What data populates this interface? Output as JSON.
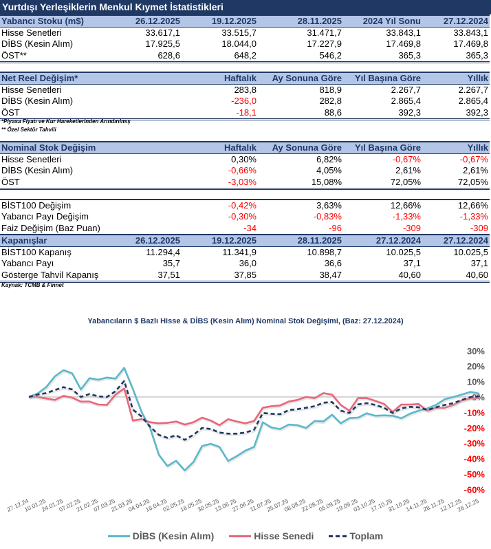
{
  "title": "Yurtdışı Yerleşiklerin Menkul Kıymet İstatistikleri",
  "tables": [
    {
      "header": [
        "Yabancı Stoku (m$)",
        "26.12.2025",
        "19.12.2025",
        "28.11.2025",
        "2024 Yıl Sonu",
        "27.12.2024"
      ],
      "rows": [
        [
          "Hisse Senetleri",
          "33.617,1",
          "33.515,7",
          "31.471,7",
          "33.843,1",
          "33.843,1"
        ],
        [
          "DİBS (Kesin Alım)",
          "17.925,5",
          "18.044,0",
          "17.227,9",
          "17.469,8",
          "17.469,8"
        ],
        [
          "ÖST**",
          "628,6",
          "648,2",
          "546,2",
          "365,3",
          "365,3"
        ]
      ]
    },
    {
      "header": [
        "Net Reel Değişim*",
        "Haftalık",
        "Ay Sonuna Göre",
        "Yıl Başına Göre",
        "Yıllık"
      ],
      "rows": [
        [
          "Hisse Senetleri",
          "283,8",
          "818,9",
          "2.267,7",
          "2.267,7"
        ],
        [
          "DİBS (Kesin Alım)",
          "-236,0",
          "282,8",
          "2.865,4",
          "2.865,4"
        ],
        [
          "ÖST",
          "-18,1",
          "88,6",
          "392,3",
          "392,3"
        ]
      ]
    },
    {
      "header": [
        "Nominal Stok Değişim",
        "Haftalık",
        "Ay Sonuna Göre",
        "Yıl Başına Göre",
        "Yıllık"
      ],
      "rows": [
        [
          "Hisse Senetleri",
          "0,30%",
          "6,82%",
          "-0,67%",
          "-0,67%"
        ],
        [
          "DİBS (Kesin Alım)",
          "-0,66%",
          "4,05%",
          "2,61%",
          "2,61%"
        ],
        [
          "ÖST",
          "-3,03%",
          "15,08%",
          "72,05%",
          "72,05%"
        ]
      ]
    },
    {
      "header": null,
      "rows": [
        [
          "BİST100 Değişim",
          "-0,42%",
          "3,63%",
          "12,66%",
          "12,66%"
        ],
        [
          "Yabancı Payı Değişim",
          "-0,30%",
          "-0,83%",
          "-1,33%",
          "-1,33%"
        ],
        [
          "Faiz Değişim (Baz Puan)",
          "-34",
          "-96",
          "-309",
          "-309"
        ]
      ]
    },
    {
      "header": [
        "Kapanışlar",
        "26.12.2025",
        "19.12.2025",
        "28.11.2025",
        "27.12.2024",
        "27.12.2024"
      ],
      "rows": [
        [
          "BİST100 Kapanış",
          "11.294,4",
          "11.341,9",
          "10.898,7",
          "10.025,5",
          "10.025,5"
        ],
        [
          "Yabancı Payı",
          "35,7",
          "36,0",
          "36,6",
          "37,1",
          "37,1"
        ],
        [
          "Gösterge Tahvil Kapanış",
          "37,51",
          "37,85",
          "38,47",
          "40,60",
          "40,60"
        ]
      ]
    }
  ],
  "notes": {
    "n1": "*Piyasa Fiyatı ve Kur Hareketlerinden Arındırılmış",
    "n2": "** Özel Sektör Tahvili",
    "source": "Kaynak: TCMB & Finnet"
  },
  "chart_data": {
    "type": "line",
    "title": "Yabancıların $ Bazlı Hisse & DİBS (Kesin Alım) Nominal Stok Değişimi, (Baz: 27.12.2024)",
    "x_labels": [
      "27.12.24",
      "10.01.25",
      "24.01.25",
      "07.02.25",
      "21.02.25",
      "07.03.25",
      "21.03.25",
      "04.04.25",
      "18.04.25",
      "02.05.25",
      "16.05.25",
      "30.05.25",
      "13.06.25",
      "27.06.25",
      "11.07.25",
      "25.07.25",
      "08.08.25",
      "22.08.25",
      "05.09.25",
      "19.09.25",
      "03.10.25",
      "17.10.25",
      "31.10.25",
      "14.11.25",
      "28.11.25",
      "12.12.25",
      "26.12.25"
    ],
    "ylim": [
      -60,
      30
    ],
    "yticks": [
      "30%",
      "20%",
      "10%",
      "0%",
      "-10%",
      "-20%",
      "-30%",
      "-40%",
      "-50%",
      "-60%"
    ],
    "ytick_values": [
      30,
      20,
      10,
      0,
      -10,
      -20,
      -30,
      -40,
      -50,
      -60
    ],
    "series": [
      {
        "name": "DİBS (Kesin Alım)",
        "color": "#5bb8c9",
        "dash": false,
        "values": [
          0,
          2.2,
          6.4,
          13.4,
          17.4,
          15.3,
          4.9,
          12.2,
          11.2,
          12.6,
          11.9,
          18.9,
          5.2,
          -9.7,
          -20.2,
          -37.4,
          -44.8,
          -41.4,
          -47.7,
          -42.2,
          -31.8,
          -30.4,
          -32.4,
          -41.5,
          -38.4,
          -34.8,
          -32.4,
          -16.4,
          -19.8,
          -20.8,
          -17.9,
          -18.3,
          -20.1,
          -15.6,
          -15.9,
          -11.5,
          -17.1,
          -13.7,
          -13.4,
          -10.6,
          -12.2,
          -11.9,
          -12.2,
          -13.8,
          -10.9,
          -8.9,
          -7.4,
          -5.2,
          -1.5,
          0,
          1.6,
          3.3,
          2.2
        ]
      },
      {
        "name": "Hisse Senedi",
        "color": "#e8677a",
        "dash": false,
        "values": [
          0,
          0,
          -1,
          -1.9,
          0.7,
          -0.4,
          -3,
          -3,
          -4.9,
          -5.2,
          1.5,
          5.5,
          -15.3,
          -14.4,
          -16.4,
          -17.1,
          -16.8,
          -15.9,
          -17.9,
          -16.4,
          -13.4,
          -15.3,
          -18.3,
          -14.4,
          -15.9,
          -17.1,
          -15.6,
          -7,
          -6,
          -5.5,
          -3,
          -1.9,
          0,
          -0.7,
          2.5,
          1.5,
          -5.2,
          -8.9,
          -0.7,
          -0.7,
          -2.5,
          -4.5,
          -9.7,
          -4.9,
          -4.9,
          -4.6,
          -8.9,
          -7,
          -7,
          -5.2,
          -2.2,
          -1,
          -0.7
        ]
      },
      {
        "name": "Toplam",
        "color": "#1f3864",
        "dash": true,
        "values": [
          0,
          1.5,
          2.5,
          4.5,
          6.4,
          4.9,
          0,
          1.9,
          0.4,
          0,
          3.7,
          10.4,
          -8.2,
          -12.6,
          -19.3,
          -24.6,
          -26.5,
          -24.9,
          -27.8,
          -24.6,
          -20.1,
          -20.8,
          -23.1,
          -23.8,
          -23.8,
          -23.1,
          -21.3,
          -10.4,
          -10.9,
          -11.2,
          -8.5,
          -7.9,
          -7,
          -6,
          -3.7,
          -3.3,
          -8.9,
          -10.4,
          -4.8,
          -4,
          -5.2,
          -7,
          -10.4,
          -7.4,
          -6.4,
          -6.7,
          -8.5,
          -6.7,
          -5.2,
          -4,
          -1.9,
          0,
          0.4
        ]
      }
    ],
    "legend": "bottom"
  }
}
